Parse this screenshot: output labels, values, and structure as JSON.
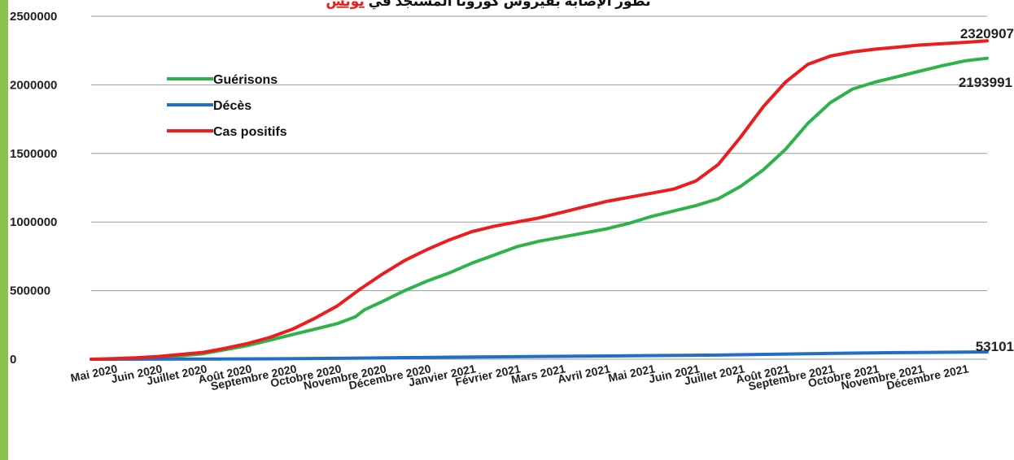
{
  "chart_data": {
    "type": "line",
    "title": "تطور الإصابة بفيروس كورونا المستجد في",
    "title_highlight": "تونس",
    "xlabel": "",
    "ylabel": "",
    "ylim": [
      0,
      2500000
    ],
    "yticks": [
      0,
      500000,
      1000000,
      1500000,
      2000000,
      2500000
    ],
    "ytick_labels": [
      "0",
      "500000",
      "1000000",
      "1500000",
      "2000000",
      "2500000"
    ],
    "categories": [
      "Mai 2020",
      "Juin 2020",
      "Juillet 2020",
      "Août 2020",
      "Septembre 2020",
      "Octobre 2020",
      "Novembre 2020",
      "Décembre 2020",
      "Janvier 2021",
      "Février 2021",
      "Mars 2021",
      "Avril 2021",
      "Mai 2021",
      "Juin 2021",
      "Juillet 2021",
      "Août 2021",
      "Septembre 2021",
      "Octobre 2021",
      "Novembre 2021",
      "Décembre 2021"
    ],
    "grid": true,
    "legend_position": "top-left",
    "series": [
      {
        "name": "Guérisons",
        "color": "#2eb34a",
        "x": [
          0,
          0.5,
          1,
          1.5,
          2,
          2.5,
          3,
          3.5,
          4,
          4.5,
          5,
          5.5,
          5.9,
          6.1,
          6.5,
          7,
          7.5,
          8,
          8.5,
          9,
          9.5,
          10,
          10.5,
          11,
          11.5,
          12,
          12.5,
          13,
          13.5,
          14,
          14.5,
          15,
          15.5,
          16,
          16.5,
          17,
          17.5,
          18,
          18.5,
          19,
          19.5,
          20
        ],
        "values": [
          0,
          3000,
          8000,
          15000,
          25000,
          40000,
          70000,
          100000,
          140000,
          180000,
          220000,
          260000,
          310000,
          360000,
          420000,
          500000,
          570000,
          630000,
          700000,
          760000,
          820000,
          860000,
          890000,
          920000,
          950000,
          990000,
          1040000,
          1080000,
          1120000,
          1170000,
          1260000,
          1380000,
          1530000,
          1720000,
          1870000,
          1970000,
          2020000,
          2060000,
          2100000,
          2140000,
          2175000,
          2193991
        ]
      },
      {
        "name": "Décès",
        "color": "#1f6fc5",
        "x": [
          0,
          2,
          4,
          6,
          8,
          10,
          12,
          14,
          16,
          18,
          20
        ],
        "values": [
          0,
          1000,
          3000,
          8000,
          15000,
          20000,
          25000,
          30000,
          40000,
          48000,
          53101
        ]
      },
      {
        "name": "Cas positifs",
        "color": "#ee1c1c",
        "x": [
          0,
          0.5,
          1,
          1.5,
          2,
          2.5,
          3,
          3.5,
          4,
          4.5,
          5,
          5.5,
          6,
          6.5,
          7,
          7.5,
          8,
          8.5,
          9,
          9.5,
          10,
          10.5,
          11,
          11.5,
          12,
          12.5,
          13,
          13.5,
          14,
          14.5,
          15,
          15.5,
          16,
          16.5,
          17,
          17.5,
          18,
          18.5,
          19,
          19.5,
          20
        ],
        "values": [
          0,
          4000,
          10000,
          20000,
          35000,
          50000,
          80000,
          115000,
          160000,
          220000,
          300000,
          390000,
          510000,
          620000,
          720000,
          800000,
          870000,
          930000,
          970000,
          1000000,
          1030000,
          1070000,
          1110000,
          1150000,
          1180000,
          1210000,
          1240000,
          1300000,
          1420000,
          1620000,
          1840000,
          2020000,
          2150000,
          2210000,
          2240000,
          2260000,
          2275000,
          2290000,
          2300000,
          2310000,
          2320907
        ]
      }
    ],
    "end_labels": [
      "2320907",
      "2193991",
      "53101"
    ]
  }
}
